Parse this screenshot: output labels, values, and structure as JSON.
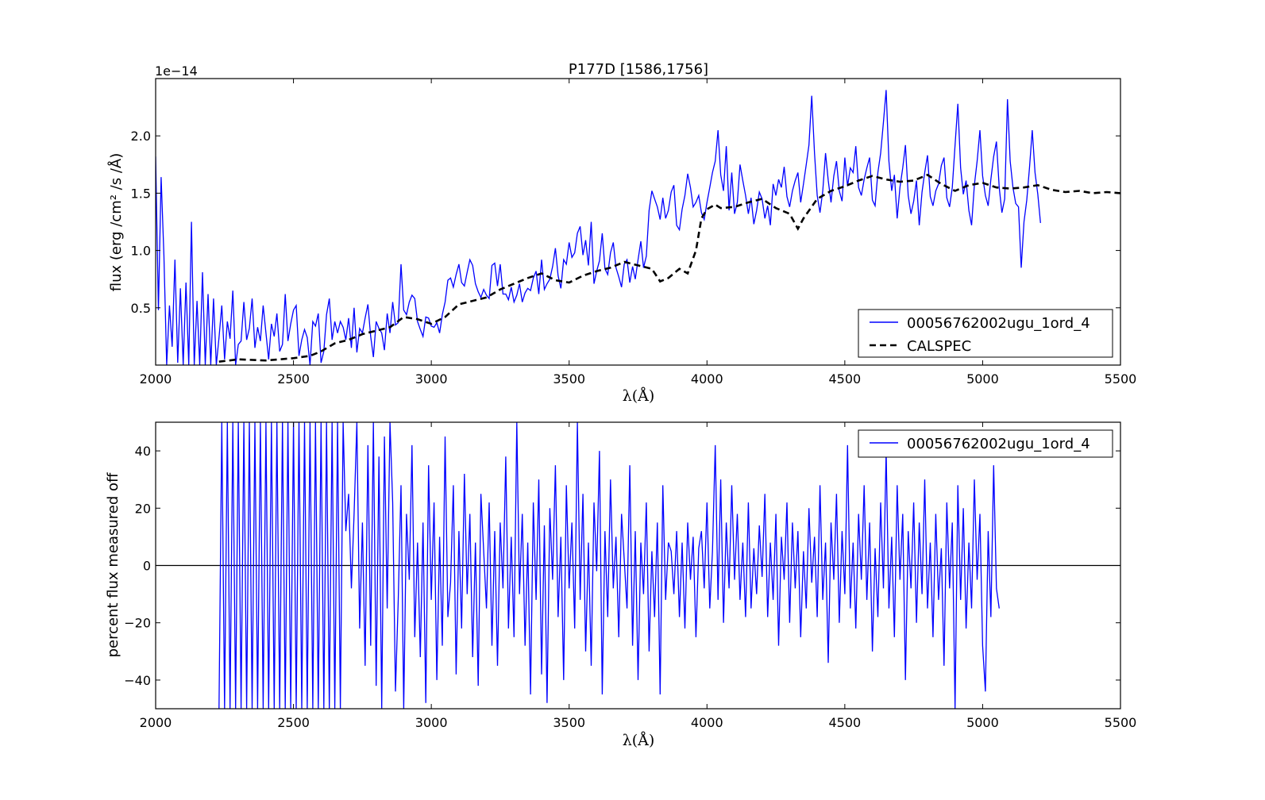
{
  "chart_data": [
    {
      "type": "line",
      "title": "P177D [1586,1756]",
      "offset_label": "1e−14",
      "ylabel": "flux (erg /cm² /s /Å)",
      "xlabel": "λ(Å)",
      "xlim": [
        2000,
        5500
      ],
      "ylim": [
        0.0,
        2.5
      ],
      "x_ticks": [
        "2000",
        "2500",
        "3000",
        "3500",
        "4000",
        "4500",
        "5000",
        "5500"
      ],
      "y_ticks": [
        "0.5",
        "1.0",
        "1.5",
        "2.0"
      ],
      "y_tick_values": [
        0.5,
        1.0,
        1.5,
        2.0
      ],
      "legend_position": "lower-right",
      "series": [
        {
          "name": "00056762002ugu_1ord_4",
          "color": "#0000ff",
          "style": "solid",
          "x_start": 2000,
          "x_step": 10,
          "values": [
            1.82,
            0.48,
            1.64,
            0.96,
            0.0,
            0.52,
            0.16,
            0.92,
            0.02,
            0.67,
            0.0,
            0.72,
            0.0,
            1.25,
            0.0,
            0.56,
            0.0,
            0.81,
            0.0,
            0.62,
            0.0,
            0.58,
            0.0,
            0.24,
            0.52,
            0.05,
            0.38,
            0.23,
            0.65,
            0.0,
            0.18,
            0.21,
            0.55,
            0.22,
            0.32,
            0.58,
            0.15,
            0.33,
            0.21,
            0.52,
            0.28,
            0.05,
            0.36,
            0.25,
            0.45,
            0.12,
            0.18,
            0.62,
            0.21,
            0.36,
            0.48,
            0.52,
            0.08,
            0.22,
            0.31,
            0.24,
            0.0,
            0.38,
            0.34,
            0.45,
            0.02,
            0.12,
            0.44,
            0.58,
            0.22,
            0.38,
            0.28,
            0.38,
            0.33,
            0.22,
            0.41,
            0.15,
            0.5,
            0.11,
            0.32,
            0.28,
            0.41,
            0.53,
            0.25,
            0.07,
            0.38,
            0.32,
            0.28,
            0.13,
            0.45,
            0.28,
            0.55,
            0.35,
            0.37,
            0.88,
            0.48,
            0.44,
            0.55,
            0.61,
            0.58,
            0.38,
            0.31,
            0.25,
            0.42,
            0.41,
            0.34,
            0.33,
            0.37,
            0.28,
            0.44,
            0.55,
            0.74,
            0.76,
            0.68,
            0.79,
            0.88,
            0.72,
            0.69,
            0.81,
            0.92,
            0.87,
            0.71,
            0.64,
            0.59,
            0.66,
            0.61,
            0.58,
            0.87,
            0.89,
            0.69,
            0.88,
            0.62,
            0.62,
            0.57,
            0.68,
            0.55,
            0.61,
            0.71,
            0.55,
            0.63,
            0.67,
            0.65,
            0.76,
            0.82,
            0.62,
            0.92,
            0.66,
            0.71,
            0.75,
            0.86,
            1.02,
            0.78,
            0.67,
            0.92,
            0.88,
            1.07,
            0.94,
            0.98,
            1.15,
            1.21,
            0.96,
            1.09,
            0.87,
            1.25,
            0.71,
            0.82,
            0.91,
            1.15,
            0.84,
            0.79,
            0.98,
            1.07,
            0.85,
            0.77,
            0.68,
            0.88,
            0.92,
            0.72,
            0.86,
            0.75,
            0.92,
            1.08,
            0.85,
            0.95,
            1.35,
            1.52,
            1.45,
            1.38,
            1.27,
            1.46,
            1.28,
            1.35,
            1.51,
            1.57,
            1.22,
            1.18,
            1.36,
            1.48,
            1.67,
            1.55,
            1.38,
            1.42,
            1.48,
            1.33,
            1.27,
            1.42,
            1.55,
            1.68,
            1.78,
            2.05,
            1.66,
            1.52,
            1.91,
            1.35,
            1.68,
            1.32,
            1.42,
            1.75,
            1.61,
            1.48,
            1.32,
            1.46,
            1.23,
            1.35,
            1.51,
            1.45,
            1.28,
            1.39,
            1.22,
            1.58,
            1.48,
            1.62,
            1.55,
            1.73,
            1.47,
            1.38,
            1.52,
            1.61,
            1.68,
            1.42,
            1.58,
            1.75,
            1.92,
            2.35,
            1.85,
            1.48,
            1.33,
            1.52,
            1.85,
            1.61,
            1.42,
            1.65,
            1.78,
            1.52,
            1.43,
            1.81,
            1.56,
            1.72,
            1.68,
            1.91,
            1.55,
            1.48,
            1.62,
            1.72,
            1.81,
            1.44,
            1.39,
            1.68,
            1.85,
            2.12,
            2.4,
            1.78,
            1.52,
            1.66,
            1.28,
            1.55,
            1.72,
            1.92,
            1.48,
            1.32,
            1.43,
            1.61,
            1.22,
            1.51,
            1.68,
            1.83,
            1.47,
            1.39,
            1.52,
            1.58,
            1.74,
            1.81,
            1.46,
            1.38,
            1.55,
            1.92,
            2.28,
            1.72,
            1.49,
            1.61,
            1.35,
            1.22,
            1.57,
            1.78,
            2.05,
            1.65,
            1.48,
            1.39,
            1.62,
            1.82,
            1.95,
            1.55,
            1.33,
            1.45,
            2.32,
            1.78,
            1.55,
            1.41,
            1.38,
            0.85,
            1.25,
            1.44,
            1.72,
            2.05,
            1.68,
            1.49,
            1.24
          ]
        },
        {
          "name": "CALSPEC",
          "color": "#000000",
          "style": "dashed",
          "x": [
            2230,
            2300,
            2400,
            2500,
            2560,
            2600,
            2650,
            2700,
            2750,
            2800,
            2850,
            2900,
            2950,
            3000,
            3050,
            3100,
            3150,
            3200,
            3250,
            3300,
            3350,
            3400,
            3450,
            3500,
            3550,
            3600,
            3650,
            3700,
            3750,
            3800,
            3830,
            3860,
            3900,
            3930,
            3960,
            3980,
            4000,
            4030,
            4050,
            4100,
            4150,
            4200,
            4250,
            4300,
            4330,
            4350,
            4400,
            4450,
            4500,
            4550,
            4600,
            4650,
            4700,
            4750,
            4800,
            4850,
            4900,
            4950,
            5000,
            5050,
            5100,
            5150,
            5200,
            5250,
            5300,
            5350,
            5400,
            5450,
            5500
          ],
          "y": [
            0.03,
            0.05,
            0.04,
            0.06,
            0.08,
            0.12,
            0.19,
            0.22,
            0.27,
            0.3,
            0.33,
            0.42,
            0.4,
            0.36,
            0.42,
            0.53,
            0.56,
            0.59,
            0.66,
            0.71,
            0.76,
            0.8,
            0.74,
            0.72,
            0.78,
            0.82,
            0.85,
            0.9,
            0.87,
            0.84,
            0.73,
            0.76,
            0.84,
            0.8,
            1.0,
            1.28,
            1.36,
            1.4,
            1.37,
            1.38,
            1.42,
            1.45,
            1.37,
            1.32,
            1.19,
            1.28,
            1.45,
            1.52,
            1.56,
            1.61,
            1.65,
            1.62,
            1.6,
            1.61,
            1.66,
            1.58,
            1.52,
            1.57,
            1.59,
            1.55,
            1.54,
            1.55,
            1.57,
            1.53,
            1.51,
            1.52,
            1.5,
            1.51,
            1.5
          ]
        }
      ]
    },
    {
      "type": "line",
      "ylabel": "percent flux measured off",
      "xlabel": "λ(Å)",
      "xlim": [
        2000,
        5500
      ],
      "ylim": [
        -50,
        50
      ],
      "x_ticks": [
        "2000",
        "2500",
        "3000",
        "3500",
        "4000",
        "4500",
        "5000",
        "5500"
      ],
      "y_ticks": [
        "40",
        "20",
        "0",
        "−20",
        "−40"
      ],
      "y_tick_values": [
        40,
        20,
        0,
        -20,
        -40
      ],
      "reference_line": 0,
      "legend_position": "upper-right",
      "series": [
        {
          "name": "00056762002ugu_1ord_4",
          "color": "#0000ff",
          "style": "solid",
          "x_start": 2230,
          "x_step": 10,
          "values": [
            -50,
            50,
            -50,
            50,
            -50,
            50,
            -50,
            50,
            -50,
            50,
            -50,
            50,
            -50,
            50,
            -50,
            50,
            -50,
            50,
            -50,
            50,
            -50,
            50,
            -50,
            50,
            -50,
            50,
            -50,
            50,
            -50,
            50,
            -50,
            50,
            -50,
            50,
            -50,
            50,
            -50,
            50,
            -50,
            50,
            -50,
            50,
            -50,
            50,
            -50,
            50,
            12,
            25,
            -8,
            18,
            50,
            -22,
            15,
            -35,
            42,
            -28,
            50,
            -42,
            38,
            -50,
            45,
            -15,
            50,
            22,
            -44,
            -12,
            28,
            -50,
            18,
            -5,
            42,
            -25,
            8,
            -32,
            15,
            -48,
            35,
            -12,
            22,
            -40,
            10,
            -28,
            45,
            -18,
            -6,
            28,
            -38,
            12,
            -22,
            32,
            -10,
            18,
            -32,
            8,
            -42,
            25,
            5,
            -15,
            22,
            -28,
            12,
            -35,
            15,
            -8,
            38,
            -22,
            10,
            -25,
            50,
            -10,
            18,
            -28,
            8,
            -45,
            22,
            -12,
            30,
            -38,
            14,
            -48,
            20,
            -5,
            35,
            -18,
            10,
            -40,
            28,
            -8,
            15,
            -22,
            50,
            -12,
            25,
            -30,
            8,
            -35,
            22,
            -2,
            40,
            -45,
            12,
            -18,
            30,
            -8,
            10,
            -25,
            18,
            2,
            -15,
            35,
            -28,
            12,
            -40,
            8,
            -10,
            22,
            -30,
            5,
            -18,
            15,
            -45,
            28,
            -12,
            8,
            5,
            -10,
            12,
            -18,
            8,
            -22,
            15,
            -5,
            10,
            -25,
            6,
            12,
            -8,
            22,
            -15,
            5,
            42,
            -12,
            30,
            -20,
            15,
            -8,
            28,
            -5,
            18,
            -12,
            8,
            -18,
            22,
            -15,
            6,
            -10,
            14,
            -4,
            25,
            -18,
            8,
            -12,
            18,
            -28,
            10,
            -5,
            22,
            -20,
            15,
            -8,
            12,
            -25,
            5,
            -15,
            20,
            -6,
            10,
            -18,
            28,
            -12,
            8,
            -34,
            15,
            -5,
            25,
            -20,
            12,
            -10,
            42,
            -15,
            8,
            -22,
            18,
            -5,
            28,
            -12,
            15,
            -30,
            6,
            -18,
            22,
            -8,
            40,
            -15,
            10,
            -25,
            28,
            -5,
            18,
            -40,
            12,
            -8,
            22,
            -20,
            15,
            -10,
            30,
            -15,
            8,
            -25,
            18,
            -12,
            6,
            -35,
            22,
            -8,
            15,
            -50,
            28,
            -12,
            20,
            -22,
            8,
            -15,
            30,
            -5,
            18,
            -28,
            -44,
            12,
            -18,
            35,
            -8,
            -15
          ]
        }
      ]
    }
  ]
}
